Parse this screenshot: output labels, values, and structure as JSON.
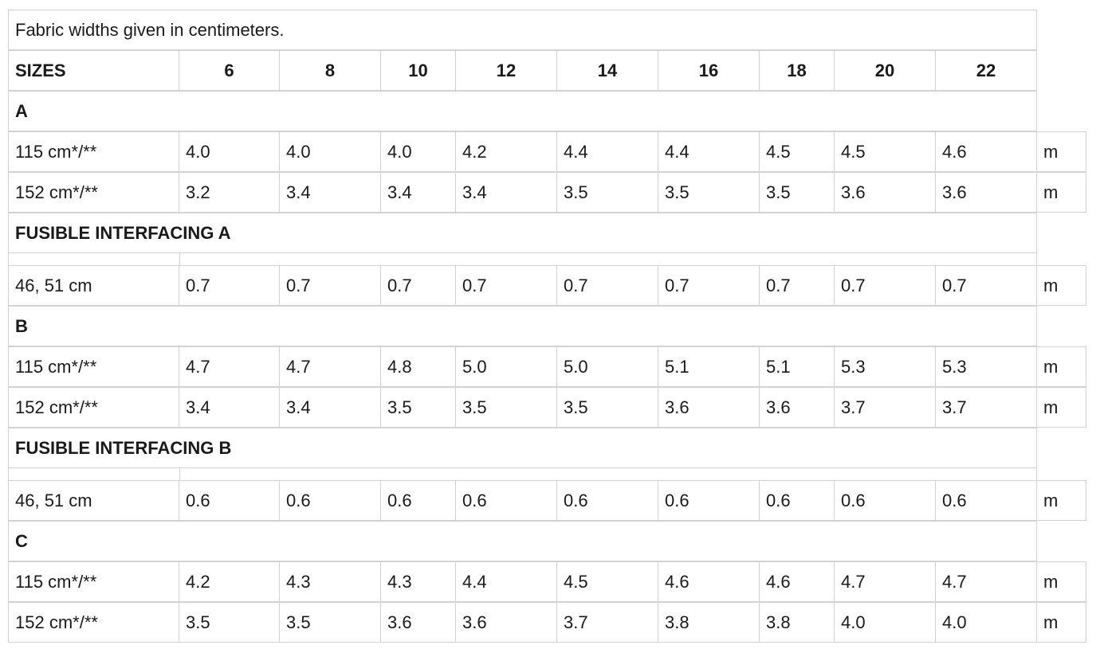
{
  "caption": "Fabric widths given in centimeters.",
  "header": {
    "label": "SIZES",
    "sizes": [
      "6",
      "8",
      "10",
      "12",
      "14",
      "16",
      "18",
      "20",
      "22"
    ]
  },
  "sections": [
    {
      "title": "A",
      "rows": [
        {
          "label": "115 cm*/**",
          "values": [
            "4.0",
            "4.0",
            "4.0",
            "4.2",
            "4.4",
            "4.4",
            "4.5",
            "4.5",
            "4.6"
          ],
          "unit": "m"
        },
        {
          "label": "152 cm*/**",
          "values": [
            "3.2",
            "3.4",
            "3.4",
            "3.4",
            "3.5",
            "3.5",
            "3.5",
            "3.6",
            "3.6"
          ],
          "unit": "m"
        }
      ]
    },
    {
      "title": "FUSIBLE INTERFACING A",
      "rows": [
        {
          "label": "46, 51 cm",
          "values": [
            "0.7",
            "0.7",
            "0.7",
            "0.7",
            "0.7",
            "0.7",
            "0.7",
            "0.7",
            "0.7"
          ],
          "unit": "m"
        }
      ]
    },
    {
      "title": "B",
      "rows": [
        {
          "label": "115 cm*/**",
          "values": [
            "4.7",
            "4.7",
            "4.8",
            "5.0",
            "5.0",
            "5.1",
            "5.1",
            "5.3",
            "5.3"
          ],
          "unit": "m"
        },
        {
          "label": "152 cm*/**",
          "values": [
            "3.4",
            "3.4",
            "3.5",
            "3.5",
            "3.5",
            "3.6",
            "3.6",
            "3.7",
            "3.7"
          ],
          "unit": "m"
        }
      ]
    },
    {
      "title": "FUSIBLE INTERFACING B",
      "rows": [
        {
          "label": "46, 51 cm",
          "values": [
            "0.6",
            "0.6",
            "0.6",
            "0.6",
            "0.6",
            "0.6",
            "0.6",
            "0.6",
            "0.6"
          ],
          "unit": "m"
        }
      ]
    },
    {
      "title": "C",
      "rows": [
        {
          "label": "115 cm*/**",
          "values": [
            "4.2",
            "4.3",
            "4.3",
            "4.4",
            "4.5",
            "4.6",
            "4.6",
            "4.7",
            "4.7"
          ],
          "unit": "m"
        },
        {
          "label": "152 cm*/**",
          "values": [
            "3.5",
            "3.5",
            "3.6",
            "3.6",
            "3.7",
            "3.8",
            "3.8",
            "4.0",
            "4.0"
          ],
          "unit": "m"
        }
      ]
    }
  ]
}
